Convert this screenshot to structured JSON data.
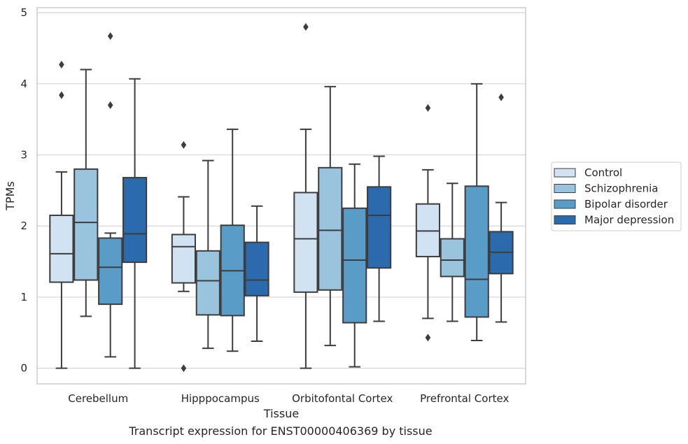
{
  "chart_data": {
    "type": "box",
    "title": "",
    "caption": "Transcript expression for ENST00000406369 by tissue",
    "xlabel": "Tissue",
    "ylabel": "TPMs",
    "ylim": [
      -0.22,
      5.07
    ],
    "yticks": [
      0,
      1,
      2,
      3,
      4,
      5
    ],
    "grid": "horizontal",
    "legend_position": "right",
    "categories": [
      "Cerebellum",
      "Hipppocampus",
      "Orbitofontal Cortex",
      "Prefrontal Cortex"
    ],
    "series": [
      {
        "name": "Control",
        "color": "#d1e2f2",
        "boxes": [
          {
            "whislo": 0.0,
            "q1": 1.21,
            "med": 1.61,
            "q3": 2.15,
            "whishi": 2.76,
            "fliers": [
              3.84,
              4.27
            ]
          },
          {
            "whislo": 1.08,
            "q1": 1.2,
            "med": 1.71,
            "q3": 1.88,
            "whishi": 2.41,
            "fliers": [
              0.0,
              3.14
            ]
          },
          {
            "whislo": 0.0,
            "q1": 1.07,
            "med": 1.82,
            "q3": 2.47,
            "whishi": 3.36,
            "fliers": [
              4.8
            ]
          },
          {
            "whislo": 0.7,
            "q1": 1.57,
            "med": 1.93,
            "q3": 2.31,
            "whishi": 2.79,
            "fliers": [
              0.43,
              3.66
            ]
          }
        ]
      },
      {
        "name": "Schizophrenia",
        "color": "#9ac3dd",
        "boxes": [
          {
            "whislo": 0.73,
            "q1": 1.24,
            "med": 2.05,
            "q3": 2.8,
            "whishi": 4.2,
            "fliers": []
          },
          {
            "whislo": 0.28,
            "q1": 0.75,
            "med": 1.23,
            "q3": 1.65,
            "whishi": 2.92,
            "fliers": []
          },
          {
            "whislo": 0.32,
            "q1": 1.1,
            "med": 1.94,
            "q3": 2.82,
            "whishi": 3.96,
            "fliers": []
          },
          {
            "whislo": 0.66,
            "q1": 1.29,
            "med": 1.52,
            "q3": 1.82,
            "whishi": 2.6,
            "fliers": []
          }
        ]
      },
      {
        "name": "Bipolar disorder",
        "color": "#5a9cc8",
        "boxes": [
          {
            "whislo": 0.16,
            "q1": 0.9,
            "med": 1.42,
            "q3": 1.83,
            "whishi": 1.9,
            "fliers": [
              3.7,
              4.67
            ]
          },
          {
            "whislo": 0.24,
            "q1": 0.74,
            "med": 1.37,
            "q3": 2.01,
            "whishi": 3.36,
            "fliers": []
          },
          {
            "whislo": 0.02,
            "q1": 0.64,
            "med": 1.52,
            "q3": 2.25,
            "whishi": 2.87,
            "fliers": []
          },
          {
            "whislo": 0.39,
            "q1": 0.72,
            "med": 1.25,
            "q3": 2.56,
            "whishi": 4.0,
            "fliers": []
          }
        ]
      },
      {
        "name": "Major depression",
        "color": "#2a6aad",
        "boxes": [
          {
            "whislo": 0.0,
            "q1": 1.49,
            "med": 1.89,
            "q3": 2.68,
            "whishi": 4.07,
            "fliers": []
          },
          {
            "whislo": 0.38,
            "q1": 1.02,
            "med": 1.24,
            "q3": 1.77,
            "whishi": 2.28,
            "fliers": []
          },
          {
            "whislo": 0.66,
            "q1": 1.41,
            "med": 2.15,
            "q3": 2.55,
            "whishi": 2.98,
            "fliers": []
          },
          {
            "whislo": 0.65,
            "q1": 1.33,
            "med": 1.63,
            "q3": 1.92,
            "whishi": 2.33,
            "fliers": [
              3.81
            ]
          }
        ]
      }
    ]
  }
}
